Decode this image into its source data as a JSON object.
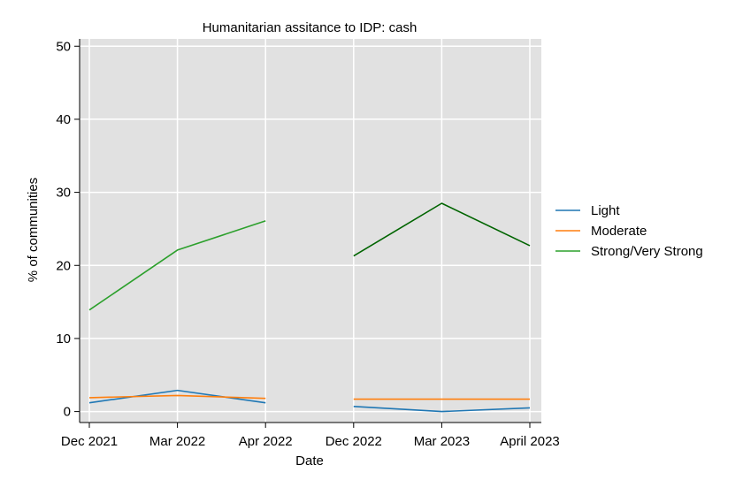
{
  "chart_data": {
    "type": "line",
    "title": "Humanitarian assitance to IDP: cash",
    "xlabel": "Date",
    "ylabel": "% of communities",
    "ylim": [
      -1.5,
      51
    ],
    "yticks": [
      0,
      10,
      20,
      30,
      40,
      50
    ],
    "categories": [
      "Dec 2021",
      "Mar 2022",
      "Apr 2022",
      "Dec 2022",
      "Mar 2023",
      "April 2023"
    ],
    "grid": true,
    "legend_position": "right",
    "series": [
      {
        "name": "Light",
        "color": "#1f77b4",
        "segments": [
          {
            "color": "#1f77b4",
            "x": [
              "Dec 2021",
              "Mar 2022",
              "Apr 2022"
            ],
            "values": [
              1.2,
              2.9,
              1.2
            ]
          },
          {
            "color": "#1f77b4",
            "x": [
              "Dec 2022",
              "Mar 2023",
              "April 2023"
            ],
            "values": [
              0.7,
              0.0,
              0.5
            ]
          }
        ]
      },
      {
        "name": "Moderate",
        "color": "#ff7f0e",
        "segments": [
          {
            "color": "#ff7f0e",
            "x": [
              "Dec 2021",
              "Mar 2022",
              "Apr 2022"
            ],
            "values": [
              1.9,
              2.2,
              1.8
            ]
          },
          {
            "color": "#ff7f0e",
            "x": [
              "Dec 2022",
              "Mar 2023",
              "April 2023"
            ],
            "values": [
              1.7,
              1.7,
              1.7
            ]
          }
        ]
      },
      {
        "name": "Strong/Very Strong",
        "color": "#2ca02c",
        "segments": [
          {
            "color": "#2ca02c",
            "x": [
              "Dec 2021",
              "Mar 2022",
              "Apr 2022"
            ],
            "values": [
              13.9,
              22.1,
              26.1
            ]
          },
          {
            "color": "#006400",
            "x": [
              "Dec 2022",
              "Mar 2023",
              "April 2023"
            ],
            "values": [
              21.3,
              28.5,
              22.7
            ]
          }
        ]
      }
    ]
  }
}
